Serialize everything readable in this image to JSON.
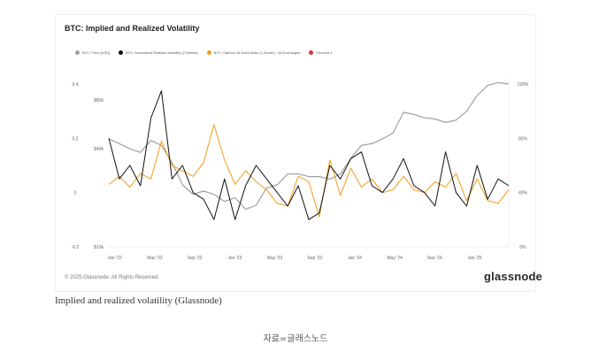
{
  "chart_data": {
    "type": "line",
    "title": "BTC: Implied and Realized Volatility",
    "legend": [
      {
        "name": "BTC: Price [USD]",
        "color": "#9aa39c"
      },
      {
        "name": "BTC: Annualized Realized Volatility (2 Weeks)",
        "color": "#111111"
      },
      {
        "name": "BTC: Options 25 Delta Skew (1 Month) - All Exchanges",
        "color": "#f39a1b"
      },
      {
        "name": "Formula 1",
        "color": "#e8302c"
      }
    ],
    "x_ticks": [
      "Jan '22",
      "May '22",
      "Sep '22",
      "Jan '23",
      "May '23",
      "Sep '23",
      "Jan '24",
      "May '24",
      "Sep '24",
      "Jan '25"
    ],
    "y_left_outer_ticks": [
      "0.4",
      "0.2",
      "0",
      "-0.2"
    ],
    "y_left_inner_ticks": [
      "$80k",
      "$40k",
      "$10k"
    ],
    "y_right_ticks": [
      "120%",
      "80%",
      "40%",
      "0%"
    ],
    "x_range": [
      0,
      38
    ],
    "price_range": [
      10,
      100
    ],
    "vol_range": [
      0,
      120
    ],
    "skew_range": [
      -0.2,
      0.4
    ],
    "series": [
      {
        "name": "BTC: Price [USD]",
        "axis": "price",
        "values": [
          46,
          43,
          40,
          38,
          45,
          42,
          33,
          24,
          21,
          22,
          21,
          19,
          20,
          17,
          18,
          23,
          24,
          28,
          28,
          27,
          27,
          26,
          28,
          35,
          42,
          43,
          46,
          50,
          67,
          65,
          62,
          61,
          58,
          60,
          68,
          85,
          98,
          102,
          100
        ]
      },
      {
        "name": "BTC: Annualized Realized Volatility (2 Weeks)",
        "axis": "vol",
        "values": [
          80,
          50,
          60,
          45,
          95,
          115,
          50,
          60,
          40,
          35,
          20,
          50,
          20,
          45,
          60,
          50,
          40,
          30,
          45,
          20,
          25,
          60,
          50,
          65,
          70,
          45,
          40,
          50,
          65,
          45,
          40,
          30,
          70,
          40,
          30,
          60,
          35,
          50,
          45
        ]
      },
      {
        "name": "BTC: Options 25 Delta Skew (1 Month) - All Exchanges",
        "axis": "skew",
        "values": [
          0.03,
          0.06,
          0.02,
          0.07,
          0.05,
          0.19,
          0.1,
          0.08,
          0.06,
          0.11,
          0.25,
          0.12,
          0.03,
          0.08,
          0.04,
          0.01,
          -0.04,
          -0.05,
          0.06,
          0.04,
          -0.09,
          0.12,
          -0.01,
          0.09,
          0.02,
          0.05,
          0.0,
          0.01,
          0.06,
          0.01,
          0.0,
          0.04,
          0.02,
          0.07,
          -0.03,
          0.05,
          -0.03,
          -0.04,
          0.01
        ]
      }
    ]
  },
  "footer": {
    "copyright": "© 2025 Glassnode. All Rights Reserved.",
    "brand": "glassnode"
  },
  "caption": "Implied and realized volatility (Glassnode)",
  "source": "자료=글래스노드"
}
